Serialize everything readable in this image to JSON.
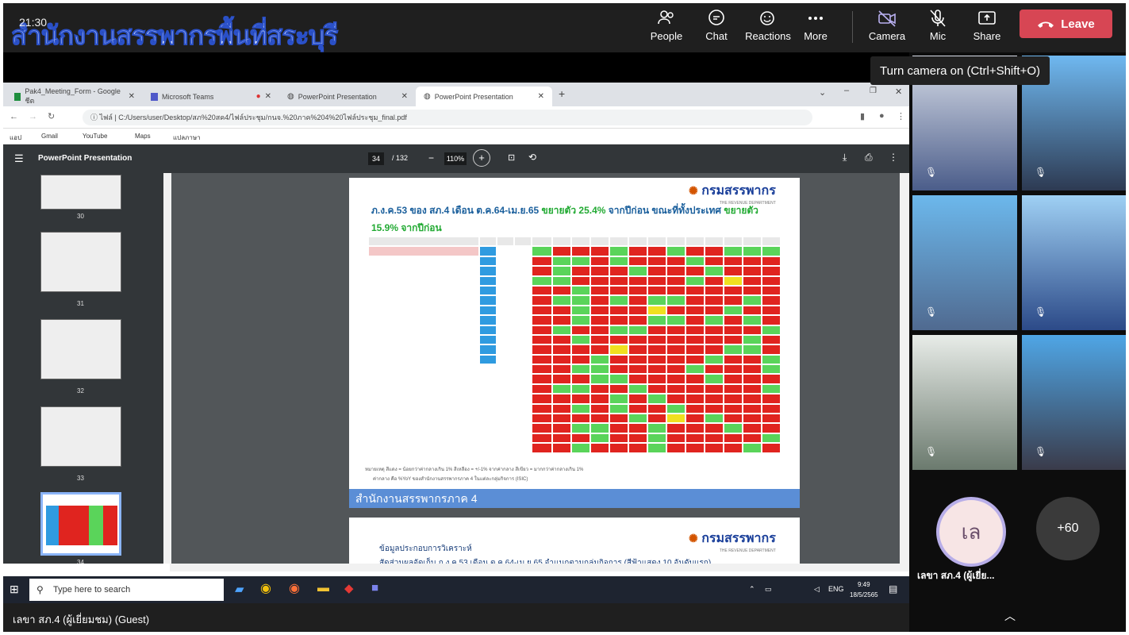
{
  "meeting": {
    "watermark": "สำนักงานสรรพากรพื้นที่สระบุรี",
    "clock": "21:30",
    "buttons": {
      "people": "People",
      "chat": "Chat",
      "reactions": "Reactions",
      "more": "More",
      "camera": "Camera",
      "mic": "Mic",
      "share": "Share",
      "leave": "Leave"
    },
    "tooltip": "Turn camera on (Ctrl+Shift+O)",
    "presenter": "เลขา สภ.4 (ผู้เยี่ยมชม) (Guest)"
  },
  "browser": {
    "tabs": [
      {
        "label": "Pak4_Meeting_Form - Google ชีต"
      },
      {
        "label": "Microsoft Teams"
      },
      {
        "label": "PowerPoint Presentation"
      },
      {
        "label": "PowerPoint Presentation"
      }
    ],
    "url_prefix": "ไฟล์",
    "url": "C:/Users/user/Desktop/สภ%20สค4/ไฟล์ประชุม/กนจ.%20ภาค%204%20ไฟล์ประชุม_final.pdf",
    "bookmarks": [
      "แอป",
      "Gmail",
      "YouTube",
      "Maps",
      "แปลภาษา"
    ]
  },
  "pdf": {
    "title": "PowerPoint Presentation",
    "page": "34",
    "page_total": "/ 132",
    "zoom": "110%",
    "thumbnail_labels": [
      "30",
      "31",
      "32",
      "33",
      "34"
    ],
    "slide": {
      "logo": "กรมสรรพากร",
      "logo_sub": "THE REVENUE DEPARTMENT",
      "title_a": "ภ.ง.ค.53 ของ สภ.4 เดือน ต.ค.64-เม.ย.65 ",
      "title_b": "ขยายตัว 25.4%",
      "title_c": " จากปีก่อน ขณะที่ทั้งประเทศ ",
      "title_d": "ขยายตัว 15.9% จากปีก่อน",
      "note1": "หมายเหตุ สีแดง = น้อยกว่าค่ากลางเกิน 1%          สีเหลือง = +/-1% จากค่ากลาง          สีเขียว = มากกว่าค่ากลางเกิน 1%",
      "note2": "ค่ากลาง คือ %YoY ของสำนักงานสรรพากรภาค 4 ในแต่ละกลุ่มกิจการ (ISIC)",
      "footer": "สำนักงานสรรพากรภาค 4"
    },
    "slide2": {
      "logo": "กรมสรรพากร",
      "logo_sub": "THE REVENUE DEPARTMENT",
      "line1": "ข้อมูลประกอบการวิเคราะห์",
      "line2": "สัดส่วนผลจัดเก็บ ภ.ง.ค.53 เดือน ต.ค.64-เม.ย.65 จำแนกตามกลุ่มกิจการ  (สีฟ้าแสดง 10 อันดับแรก)"
    }
  },
  "taskbar": {
    "search_placeholder": "Type here to search",
    "lang": "ENG",
    "time": "9:49",
    "date": "18/5/2565"
  },
  "participants": {
    "avatar_initials": "เล",
    "avatar_name": "เลขา สภ.4 (ผู้เยี่ย...",
    "more": "+60"
  },
  "colors": {
    "leave": "#d74654",
    "grid_green": "#5ad45a",
    "grid_red": "#e0241f",
    "grid_yellow": "#f0e020",
    "grid_blue": "#2f9be0"
  }
}
